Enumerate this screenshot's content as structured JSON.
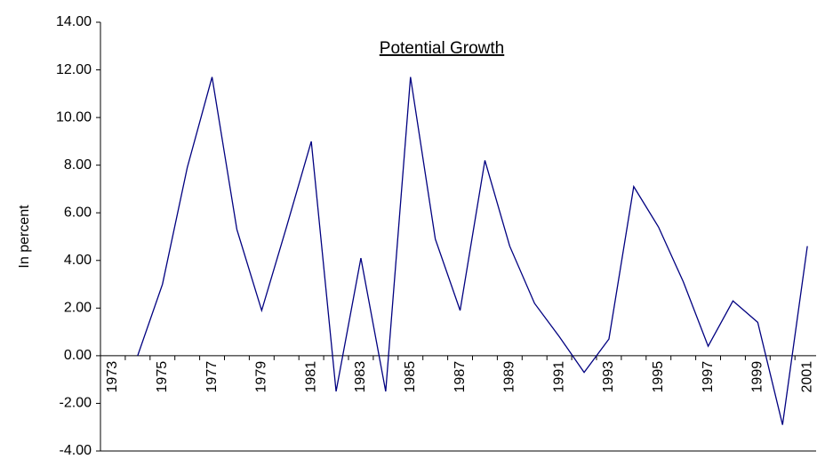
{
  "chart_data": {
    "type": "line",
    "title": "Potential Growth",
    "y_label": "In percent",
    "categories": [
      "1973",
      null,
      "1975",
      null,
      "1977",
      null,
      "1979",
      null,
      "1981",
      null,
      "1983",
      null,
      "1985",
      null,
      "1987",
      null,
      "1989",
      null,
      "1991",
      null,
      "1993",
      null,
      "1995",
      null,
      "1997",
      null,
      "1999",
      null,
      "2001"
    ],
    "series": [
      {
        "name": "Potential Growth",
        "color": "#000080",
        "values": [
          null,
          0.0,
          3.0,
          7.9,
          11.7,
          5.3,
          1.9,
          5.4,
          9.0,
          -1.5,
          4.1,
          -1.5,
          11.7,
          4.9,
          1.9,
          8.2,
          4.6,
          2.2,
          0.8,
          -0.7,
          0.7,
          7.1,
          5.4,
          3.1,
          0.4,
          2.3,
          1.4,
          -2.9,
          4.6
        ]
      }
    ],
    "ylim": [
      -4,
      14
    ],
    "yticks": [
      {
        "value": -4,
        "label": "-4.00"
      },
      {
        "value": -2,
        "label": "-2.00"
      },
      {
        "value": 0,
        "label": "0.00"
      },
      {
        "value": 2,
        "label": "2.00"
      },
      {
        "value": 4,
        "label": "4.00"
      },
      {
        "value": 6,
        "label": "6.00"
      },
      {
        "value": 8,
        "label": "8.00"
      },
      {
        "value": 10,
        "label": "10.00"
      },
      {
        "value": 12,
        "label": "12.00"
      },
      {
        "value": 14,
        "label": "14.00"
      }
    ],
    "grid": false
  }
}
